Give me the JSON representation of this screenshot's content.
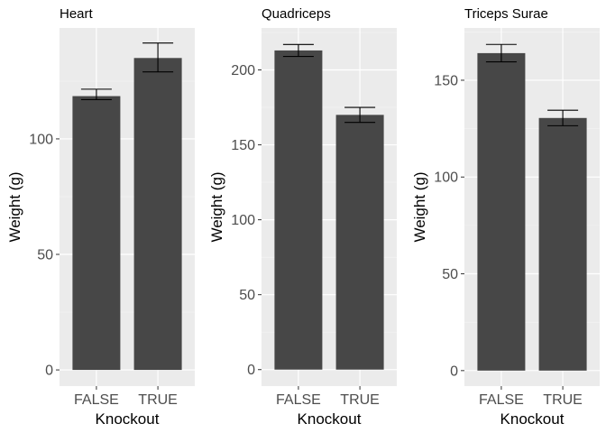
{
  "chart_data": [
    {
      "type": "bar",
      "title": "Heart",
      "xlabel": "Knockout",
      "ylabel": "Weight (g)",
      "categories": [
        "FALSE",
        "TRUE"
      ],
      "values": [
        118.5,
        135
      ],
      "error_low": [
        117,
        129
      ],
      "error_high": [
        121.5,
        141.5
      ],
      "ylim": [
        -7,
        148
      ],
      "yticks": [
        0,
        50,
        100
      ],
      "grid": true
    },
    {
      "type": "bar",
      "title": "Quadriceps",
      "xlabel": "Knockout",
      "ylabel": "Weight (g)",
      "categories": [
        "FALSE",
        "TRUE"
      ],
      "values": [
        213,
        170
      ],
      "error_low": [
        209,
        165
      ],
      "error_high": [
        217,
        175
      ],
      "ylim": [
        -11,
        228
      ],
      "yticks": [
        0,
        50,
        100,
        150,
        200
      ],
      "grid": true
    },
    {
      "type": "bar",
      "title": "Triceps Surae",
      "xlabel": "Knockout",
      "ylabel": "Weight (g)",
      "categories": [
        "FALSE",
        "TRUE"
      ],
      "values": [
        164,
        130.5
      ],
      "error_low": [
        159.5,
        126.5
      ],
      "error_high": [
        168.5,
        134.5
      ],
      "ylim": [
        -8,
        177
      ],
      "yticks": [
        0,
        50,
        100,
        150
      ],
      "grid": true
    }
  ],
  "style": {
    "panel_background": "#ebebeb",
    "grid_major_color": "#ffffff",
    "grid_minor_color": "#f5f5f5",
    "bar_color": "#474747",
    "errorbar_color": "#000000",
    "text_color": "#000000",
    "tick_label_color": "#4d4d4d"
  }
}
